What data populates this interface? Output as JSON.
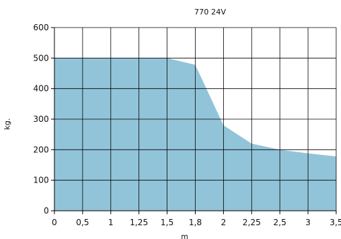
{
  "chart_data": {
    "type": "area",
    "title": "770 24V",
    "xlabel": "m",
    "ylabel": "kg.",
    "x_categories": [
      "0",
      "0,5",
      "1",
      "1,25",
      "1,5",
      "1,8",
      "2",
      "2,25",
      "2,5",
      "3",
      "3,5"
    ],
    "y_ticks": [
      "0",
      "100",
      "200",
      "300",
      "400",
      "500",
      "600"
    ],
    "ylim": [
      0,
      600
    ],
    "grid": true,
    "series": [
      {
        "points": [
          {
            "x": "0",
            "y": 500
          },
          {
            "x": "0,5",
            "y": 500
          },
          {
            "x": "1",
            "y": 500
          },
          {
            "x": "1,25",
            "y": 500
          },
          {
            "x": "1,5",
            "y": 500
          },
          {
            "x": "1,8",
            "y": 478
          },
          {
            "x": "2",
            "y": 280
          },
          {
            "x": "2,25",
            "y": 220
          },
          {
            "x": "2,5",
            "y": 200
          },
          {
            "x": "3",
            "y": 188
          },
          {
            "x": "3,5",
            "y": 178
          }
        ]
      }
    ],
    "colors": {
      "fill": "#92c4d9",
      "grid": "#000000",
      "text": "#111111"
    }
  }
}
